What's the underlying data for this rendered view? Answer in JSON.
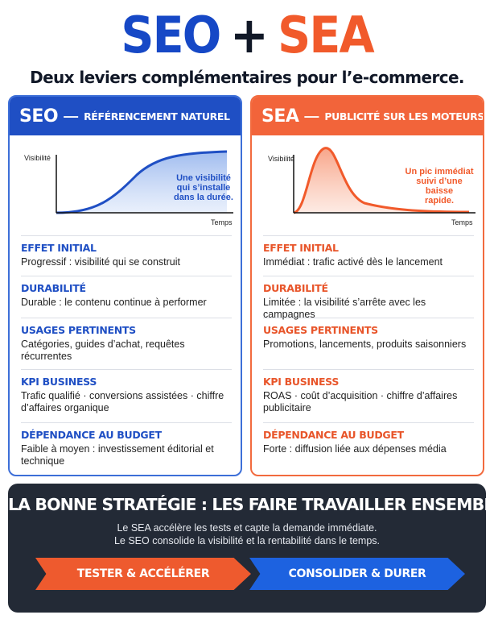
{
  "title": {
    "seo": "SEO",
    "plus": "+",
    "sea": "SEA"
  },
  "subtitle": "Deux leviers complémentaires pour l’e-commerce.",
  "seo": {
    "head_big": "SEO",
    "head_dash": "—",
    "head_small": "RÉFÉRENCEMENT NATUREL",
    "chart": {
      "y_label": "Visibilité",
      "x_label": "Temps",
      "note": [
        "Une visibilité",
        "qui s’installe",
        "dans la durée."
      ]
    },
    "sections": [
      {
        "title": "EFFET INITIAL",
        "body": "Progressif : visibilité qui se construit"
      },
      {
        "title": "DURABILITÉ",
        "body": "Durable : le contenu continue à performer"
      },
      {
        "title": "USAGES PERTINENTS",
        "body": "Catégories, guides d’achat, requêtes récurrentes"
      },
      {
        "title": "KPI BUSINESS",
        "body": "Trafic qualifié · conversions assistées · chiffre d’affaires organique"
      },
      {
        "title": "DÉPENDANCE AU BUDGET",
        "body": "Faible à moyen : investissement éditorial et technique"
      }
    ]
  },
  "sea": {
    "head_big": "SEA",
    "head_dash": "—",
    "head_small": "PUBLICITÉ SUR LES MOTEURS",
    "chart": {
      "y_label": "Visibilité",
      "x_label": "Temps",
      "note": [
        "Un pic immédiat",
        "suivi d’une baisse",
        "rapide."
      ]
    },
    "sections": [
      {
        "title": "EFFET INITIAL",
        "body": "Immédiat : trafic activé dès le lancement"
      },
      {
        "title": "DURABILITÉ",
        "body": "Limitée : la visibilité s’arrête avec les campagnes"
      },
      {
        "title": "USAGES PERTINENTS",
        "body": "Promotions, lancements, produits saisonniers"
      },
      {
        "title": "KPI BUSINESS",
        "body": "ROAS · coût d’acquisition · chiffre d’affaires publicitaire"
      },
      {
        "title": "DÉPENDANCE AU BUDGET",
        "body": "Forte : diffusion liée aux dépenses média"
      }
    ]
  },
  "bottom": {
    "title": "LA BONNE STRATÉGIE : LES FAIRE TRAVAILLER ENSEMBLE",
    "lines": [
      "Le SEA accélère les tests et capte la demande immédiate.",
      "Le SEO consolide la visibilité et la rentabilité dans le temps."
    ],
    "arrow_left": "TESTER & ACCÉLÉRER",
    "arrow_right": "CONSOLIDER & DURER"
  },
  "colors": {
    "seo_blue": "#1f4fc4",
    "sea_orange": "#f2643a",
    "dark": "#232a36"
  }
}
